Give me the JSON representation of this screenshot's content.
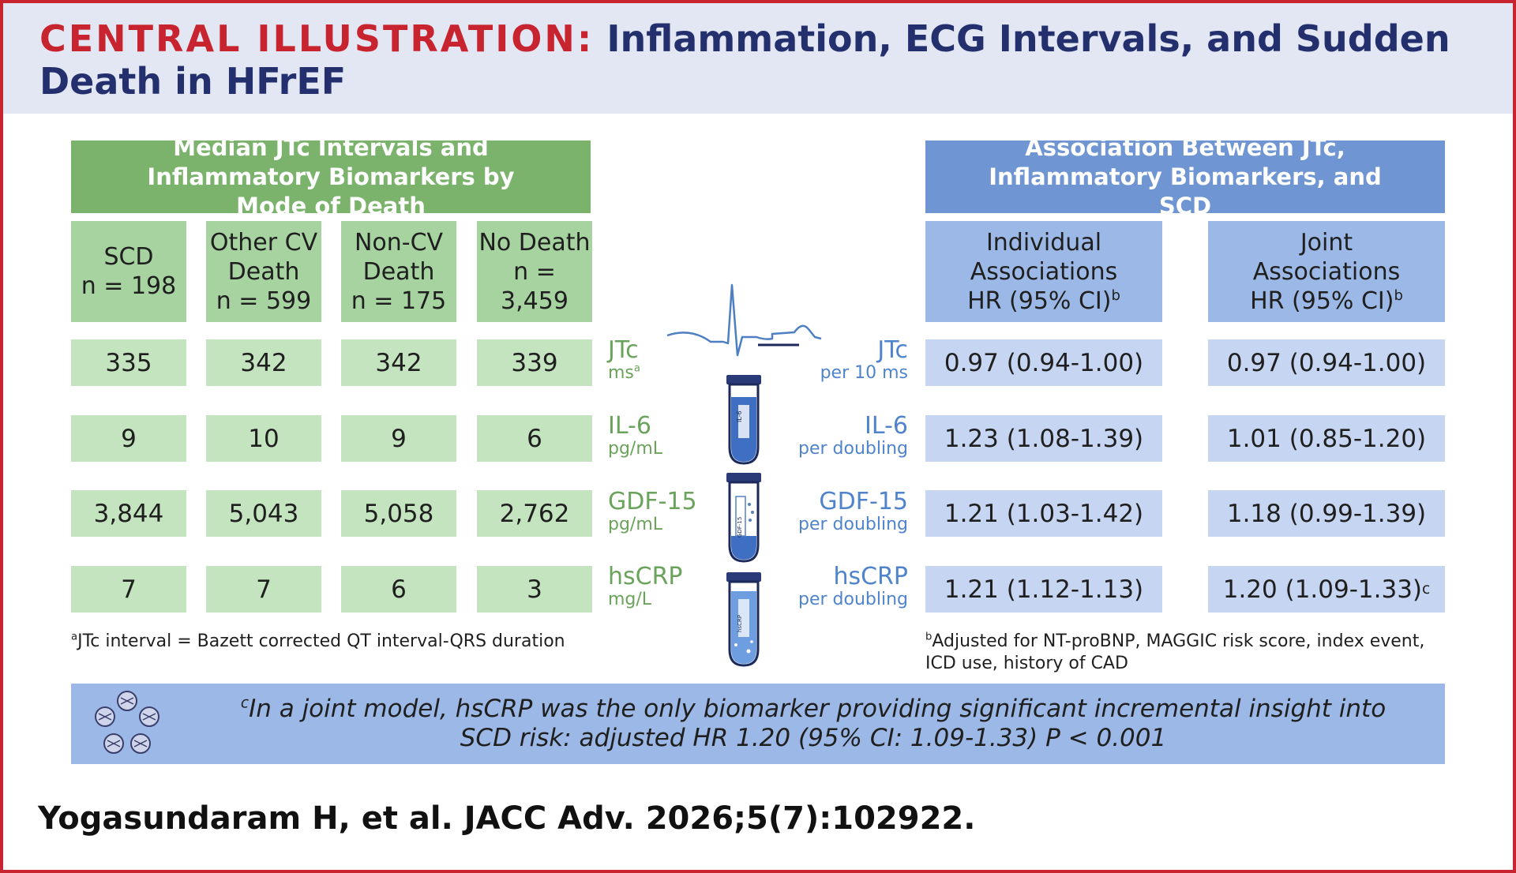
{
  "header": {
    "title_lead": "CENTRAL ILLUSTRATION:",
    "title_rest": "Inflammation, ECG Intervals, and Sudden Death in HFrEF"
  },
  "left_panel": {
    "title": "Median JTc Intervals and Inflammatory Biomarkers by Mode of Death",
    "columns": [
      {
        "line1": "SCD",
        "line2": "n = 198"
      },
      {
        "line1": "Other CV",
        "line2": "Death",
        "line3": "n = 599"
      },
      {
        "line1": "Non-CV",
        "line2": "Death",
        "line3": "n = 175"
      },
      {
        "line1": "No Death",
        "line2": "n = 3,459"
      }
    ],
    "rows": [
      [
        "335",
        "342",
        "342",
        "339"
      ],
      [
        "9",
        "10",
        "9",
        "6"
      ],
      [
        "3,844",
        "5,043",
        "5,058",
        "2,762"
      ],
      [
        "7",
        "7",
        "6",
        "3"
      ]
    ],
    "row_labels": [
      {
        "name": "JTc",
        "unit": "ms",
        "sup": "a"
      },
      {
        "name": "IL-6",
        "unit": "pg/mL"
      },
      {
        "name": "GDF-15",
        "unit": "pg/mL"
      },
      {
        "name": "hsCRP",
        "unit": "mg/L"
      }
    ],
    "footnote_sup": "a",
    "footnote": "JTc interval = Bazett corrected QT interval-QRS duration"
  },
  "right_panel": {
    "title": "Association Between JTc, Inflammatory Biomarkers, and SCD",
    "columns": [
      {
        "line1": "Individual",
        "line2": "Associations",
        "line3": "HR (95% CI)",
        "sup": "b"
      },
      {
        "line1": "Joint",
        "line2": "Associations",
        "line3": "HR (95% CI)",
        "sup": "b"
      }
    ],
    "row_labels": [
      {
        "name": "JTc",
        "unit": "per 10 ms"
      },
      {
        "name": "IL-6",
        "unit": "per doubling"
      },
      {
        "name": "GDF-15",
        "unit": "per doubling"
      },
      {
        "name": "hsCRP",
        "unit": "per doubling"
      }
    ],
    "rows": [
      {
        "individual": "0.97 (0.94-1.00)",
        "joint": "0.97 (0.94-1.00)"
      },
      {
        "individual": "1.23 (1.08-1.39)",
        "joint": "1.01 (0.85-1.20)"
      },
      {
        "individual": "1.21 (1.03-1.42)",
        "joint": "1.18 (0.99-1.39)"
      },
      {
        "individual": "1.21 (1.12-1.13)",
        "joint": "1.20 (1.09-1.33)",
        "joint_sup": "c"
      }
    ],
    "footnote_sup": "b",
    "footnote": "Adjusted for NT-proBNP, MAGGIC risk score, index event, ICD use, history of CAD"
  },
  "tube_labels": [
    "IL-6",
    "GDF-15",
    "hsCRP"
  ],
  "bottom_note": {
    "sup": "c",
    "line1": "In a joint model, hsCRP was the only biomarker providing significant incremental insight into",
    "line2": "SCD risk: adjusted HR 1.20 (95% CI: 1.09-1.33) P < 0.001"
  },
  "citation": "Yogasundaram H, et al. JACC Adv. 2026;5(7):102922.",
  "colors": {
    "brand_red": "#c8242f",
    "navy": "#24306e",
    "green": "#7cb36c",
    "blue": "#6f95d2"
  }
}
